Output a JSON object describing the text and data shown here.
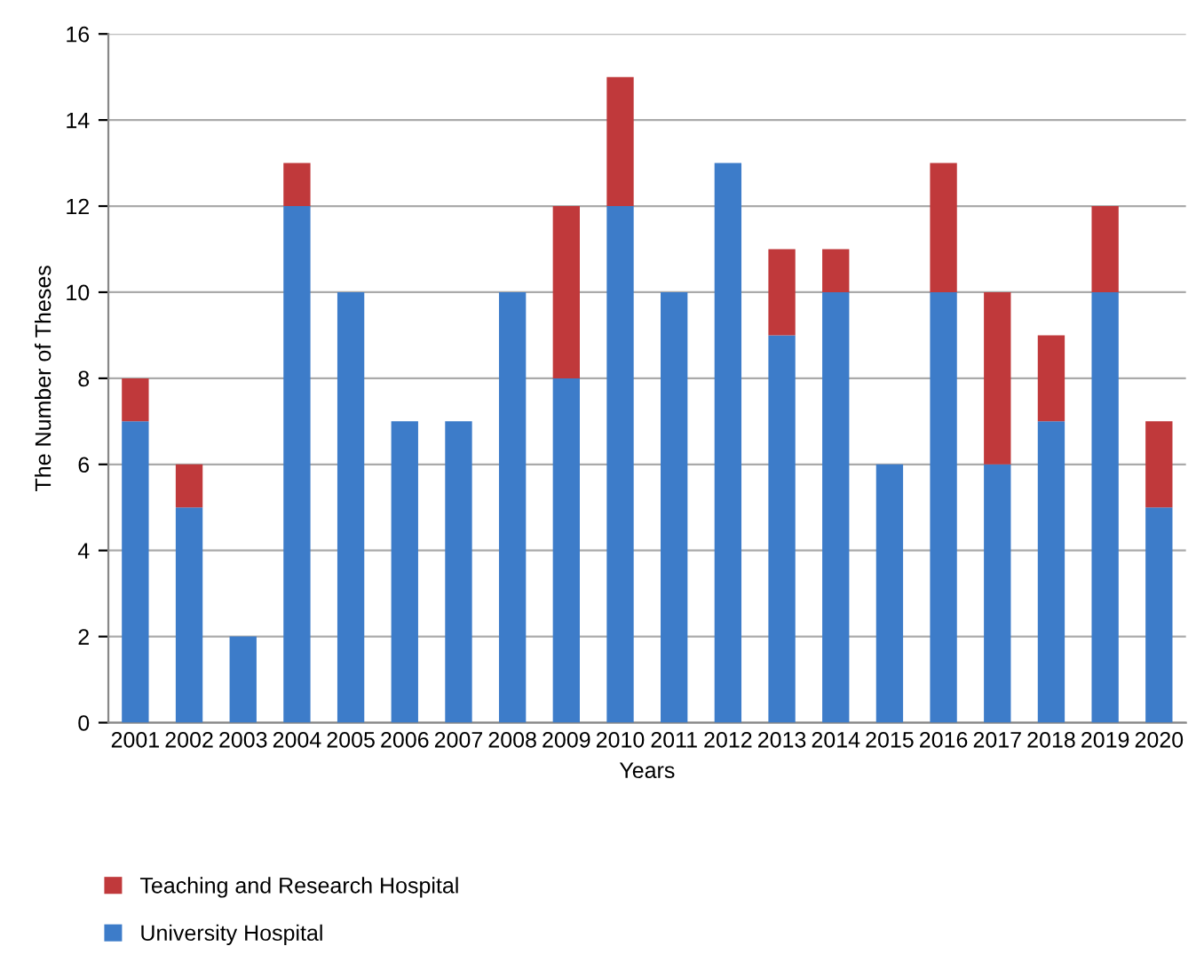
{
  "chart_data": {
    "type": "bar",
    "stacked": true,
    "xlabel": "Years",
    "ylabel": "The Number of Theses",
    "categories": [
      "2001",
      "2002",
      "2003",
      "2004",
      "2005",
      "2006",
      "2007",
      "2008",
      "2009",
      "2010",
      "2011",
      "2012",
      "2013",
      "2014",
      "2015",
      "2016",
      "2017",
      "2018",
      "2019",
      "2020"
    ],
    "series": [
      {
        "name": "University Hospital",
        "color": "#3d7cc9",
        "values": [
          7,
          5,
          2,
          12,
          10,
          7,
          7,
          10,
          8,
          12,
          10,
          13,
          9,
          10,
          6,
          10,
          6,
          7,
          10,
          5
        ]
      },
      {
        "name": "Teaching and Research Hospital",
        "color": "#c0393b",
        "values": [
          1,
          1,
          0,
          1,
          0,
          0,
          0,
          0,
          4,
          3,
          0,
          0,
          2,
          1,
          0,
          3,
          4,
          2,
          2,
          2
        ]
      }
    ],
    "ylim": [
      0,
      16
    ],
    "yticks": [
      0,
      2,
      4,
      6,
      8,
      10,
      12,
      14,
      16
    ],
    "grid": "y",
    "legend": "bottom"
  }
}
